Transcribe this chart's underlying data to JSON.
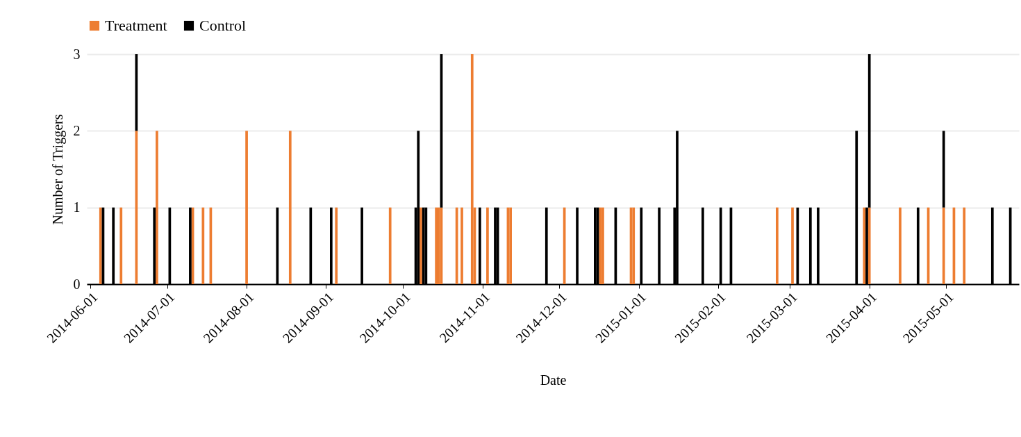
{
  "chart_data": {
    "type": "bar",
    "stacked": true,
    "xlabel": "Date",
    "ylabel": "Number of Triggers",
    "x": [
      "2014-06-05",
      "2014-06-06",
      "2014-06-10",
      "2014-06-13",
      "2014-06-19",
      "2014-06-26",
      "2014-06-27",
      "2014-07-02",
      "2014-07-10",
      "2014-07-11",
      "2014-07-15",
      "2014-07-18",
      "2014-08-01",
      "2014-08-13",
      "2014-08-18",
      "2014-08-26",
      "2014-09-03",
      "2014-09-05",
      "2014-09-15",
      "2014-09-26",
      "2014-10-06",
      "2014-10-07",
      "2014-10-08",
      "2014-10-09",
      "2014-10-10",
      "2014-10-14",
      "2014-10-15",
      "2014-10-16",
      "2014-10-22",
      "2014-10-24",
      "2014-10-28",
      "2014-10-29",
      "2014-10-31",
      "2014-11-03",
      "2014-11-06",
      "2014-11-07",
      "2014-11-11",
      "2014-11-12",
      "2014-11-26",
      "2014-12-03",
      "2014-12-08",
      "2014-12-15",
      "2014-12-16",
      "2014-12-17",
      "2014-12-18",
      "2014-12-23",
      "2014-12-29",
      "2014-12-30",
      "2015-01-02",
      "2015-01-09",
      "2015-01-15",
      "2015-01-16",
      "2015-01-26",
      "2015-02-02",
      "2015-02-06",
      "2015-02-24",
      "2015-03-02",
      "2015-03-04",
      "2015-03-09",
      "2015-03-12",
      "2015-03-27",
      "2015-03-30",
      "2015-03-31",
      "2015-04-01",
      "2015-04-13",
      "2015-04-20",
      "2015-04-24",
      "2015-04-30",
      "2015-05-04",
      "2015-05-08",
      "2015-05-19",
      "2015-05-26"
    ],
    "series": [
      {
        "name": "Treatment",
        "color": "#ed7d31",
        "values": [
          1,
          null,
          null,
          1,
          2,
          null,
          2,
          null,
          null,
          1,
          1,
          1,
          2,
          null,
          2,
          null,
          null,
          1,
          null,
          1,
          null,
          null,
          1,
          null,
          null,
          1,
          1,
          1,
          1,
          1,
          3,
          1,
          null,
          1,
          null,
          null,
          1,
          1,
          null,
          1,
          null,
          null,
          null,
          1,
          1,
          null,
          1,
          1,
          null,
          null,
          null,
          null,
          null,
          null,
          null,
          1,
          1,
          null,
          null,
          null,
          null,
          1,
          null,
          1,
          1,
          null,
          1,
          1,
          1,
          1,
          null,
          null
        ]
      },
      {
        "name": "Control",
        "color": "#000000",
        "values": [
          null,
          1,
          1,
          null,
          1,
          1,
          null,
          1,
          1,
          null,
          null,
          null,
          null,
          1,
          null,
          1,
          1,
          null,
          1,
          null,
          1,
          2,
          null,
          1,
          1,
          null,
          null,
          2,
          null,
          null,
          null,
          null,
          1,
          null,
          1,
          1,
          null,
          null,
          1,
          null,
          1,
          1,
          1,
          null,
          null,
          1,
          null,
          null,
          1,
          1,
          1,
          2,
          1,
          1,
          1,
          null,
          null,
          1,
          1,
          1,
          2,
          null,
          1,
          2,
          null,
          1,
          null,
          1,
          null,
          null,
          1,
          1
        ]
      }
    ],
    "xlim": [
      "2014-06-01",
      "2015-05-28"
    ],
    "xticks": [
      "2014-06-01",
      "2014-07-01",
      "2014-08-01",
      "2014-09-01",
      "2014-10-01",
      "2014-11-01",
      "2014-12-01",
      "2015-01-01",
      "2015-02-01",
      "2015-03-01",
      "2015-04-01",
      "2015-05-01"
    ],
    "ylim": [
      0,
      3
    ],
    "yticks": [
      0,
      1,
      2,
      3
    ],
    "grid": "y",
    "legend": "top"
  }
}
